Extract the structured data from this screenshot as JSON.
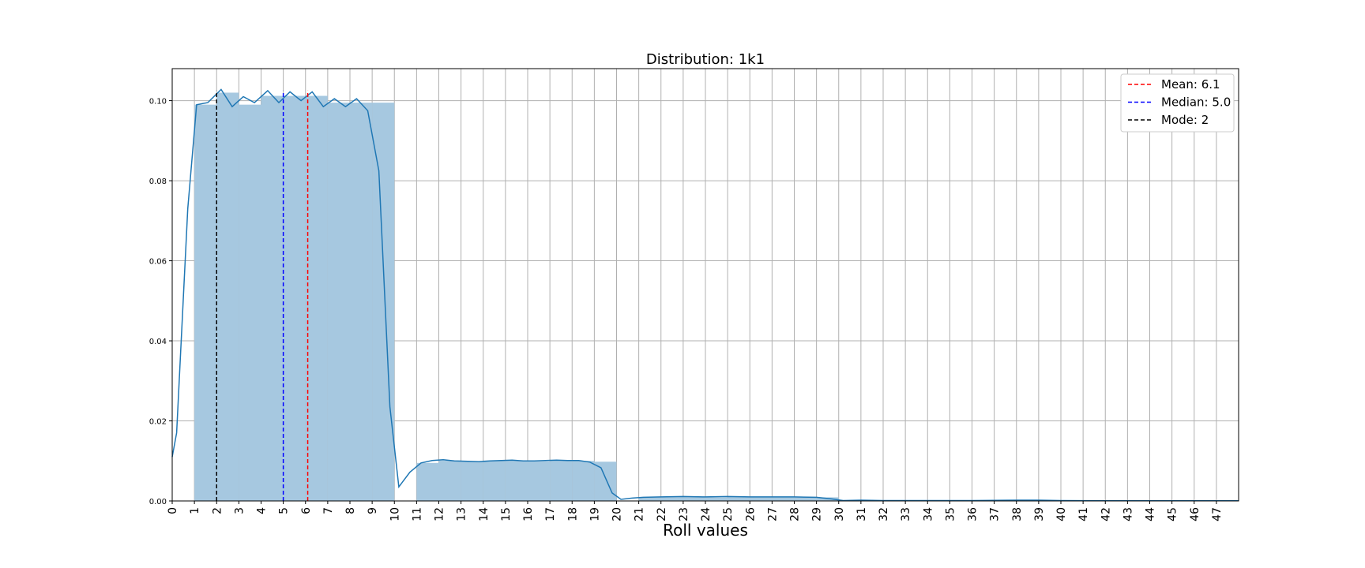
{
  "chart_data": {
    "type": "bar",
    "title": "Distribution: 1k1",
    "xlabel": "Roll values",
    "ylabel": "",
    "xlim": [
      0,
      48
    ],
    "ylim": [
      0,
      0.108
    ],
    "grid": true,
    "legend_position": "top-right",
    "x_ticks": [
      "0",
      "1",
      "2",
      "3",
      "4",
      "5",
      "6",
      "7",
      "8",
      "9",
      "10",
      "11",
      "12",
      "13",
      "14",
      "15",
      "16",
      "17",
      "18",
      "19",
      "20",
      "21",
      "22",
      "23",
      "24",
      "25",
      "26",
      "27",
      "28",
      "29",
      "30",
      "31",
      "32",
      "33",
      "34",
      "35",
      "36",
      "37",
      "38",
      "39",
      "40",
      "41",
      "42",
      "43",
      "44",
      "45",
      "46",
      "47"
    ],
    "y_ticks": [
      "0.00",
      "0.02",
      "0.04",
      "0.06",
      "0.08",
      "0.10"
    ],
    "y_tick_values": [
      0,
      0.02,
      0.04,
      0.06,
      0.08,
      0.1
    ],
    "histogram": {
      "series_color": "#a6c8e0",
      "bins": [
        {
          "x0": 1,
          "x1": 2,
          "value": 0.099
        },
        {
          "x0": 2,
          "x1": 3,
          "value": 0.102
        },
        {
          "x0": 3,
          "x1": 4,
          "value": 0.099
        },
        {
          "x0": 4,
          "x1": 5,
          "value": 0.1012
        },
        {
          "x0": 5,
          "x1": 6,
          "value": 0.1012
        },
        {
          "x0": 6,
          "x1": 7,
          "value": 0.1012
        },
        {
          "x0": 7,
          "x1": 8,
          "value": 0.0995
        },
        {
          "x0": 8,
          "x1": 9,
          "value": 0.0995
        },
        {
          "x0": 9,
          "x1": 10,
          "value": 0.0995
        },
        {
          "x0": 11,
          "x1": 12,
          "value": 0.0095
        },
        {
          "x0": 12,
          "x1": 13,
          "value": 0.0101
        },
        {
          "x0": 13,
          "x1": 14,
          "value": 0.0099
        },
        {
          "x0": 14,
          "x1": 15,
          "value": 0.0101
        },
        {
          "x0": 15,
          "x1": 16,
          "value": 0.0101
        },
        {
          "x0": 16,
          "x1": 17,
          "value": 0.0099
        },
        {
          "x0": 17,
          "x1": 18,
          "value": 0.0101
        },
        {
          "x0": 18,
          "x1": 19,
          "value": 0.01
        },
        {
          "x0": 19,
          "x1": 20,
          "value": 0.0098
        },
        {
          "x0": 21,
          "x1": 22,
          "value": 0.0009
        },
        {
          "x0": 22,
          "x1": 23,
          "value": 0.001
        },
        {
          "x0": 23,
          "x1": 24,
          "value": 0.001
        },
        {
          "x0": 24,
          "x1": 25,
          "value": 0.0009
        },
        {
          "x0": 25,
          "x1": 26,
          "value": 0.001
        },
        {
          "x0": 26,
          "x1": 27,
          "value": 0.0009
        },
        {
          "x0": 27,
          "x1": 28,
          "value": 0.0009
        },
        {
          "x0": 28,
          "x1": 29,
          "value": 0.0009
        },
        {
          "x0": 29,
          "x1": 30,
          "value": 0.0009
        }
      ]
    },
    "kde": {
      "color": "#1f77b4",
      "points": [
        [
          0,
          0.011
        ],
        [
          0.2,
          0.017
        ],
        [
          0.7,
          0.073
        ],
        [
          1.1,
          0.099
        ],
        [
          1.6,
          0.0995
        ],
        [
          2.2,
          0.1028
        ],
        [
          2.7,
          0.0985
        ],
        [
          3.2,
          0.101
        ],
        [
          3.7,
          0.0995
        ],
        [
          4.3,
          0.1025
        ],
        [
          4.8,
          0.0995
        ],
        [
          5.3,
          0.1022
        ],
        [
          5.8,
          0.1
        ],
        [
          6.3,
          0.1022
        ],
        [
          6.8,
          0.0985
        ],
        [
          7.3,
          0.1005
        ],
        [
          7.8,
          0.0985
        ],
        [
          8.3,
          0.1005
        ],
        [
          8.8,
          0.0975
        ],
        [
          9.3,
          0.0825
        ],
        [
          9.8,
          0.0235
        ],
        [
          10.2,
          0.0035
        ],
        [
          10.7,
          0.0072
        ],
        [
          11.2,
          0.0095
        ],
        [
          11.7,
          0.0101
        ],
        [
          12.2,
          0.0103
        ],
        [
          12.7,
          0.01
        ],
        [
          13.3,
          0.0099
        ],
        [
          13.8,
          0.0098
        ],
        [
          14.3,
          0.01
        ],
        [
          14.8,
          0.0101
        ],
        [
          15.3,
          0.0102
        ],
        [
          15.8,
          0.01
        ],
        [
          16.3,
          0.01
        ],
        [
          16.8,
          0.0101
        ],
        [
          17.3,
          0.0102
        ],
        [
          17.8,
          0.0101
        ],
        [
          18.3,
          0.0101
        ],
        [
          18.8,
          0.0097
        ],
        [
          19.3,
          0.0083
        ],
        [
          19.8,
          0.002
        ],
        [
          20.2,
          0.0004
        ],
        [
          20.7,
          0.0007
        ],
        [
          21.2,
          0.0009
        ],
        [
          22,
          0.001
        ],
        [
          23,
          0.0011
        ],
        [
          24,
          0.001
        ],
        [
          25,
          0.0011
        ],
        [
          26,
          0.001
        ],
        [
          27,
          0.001
        ],
        [
          28,
          0.001
        ],
        [
          29,
          0.0009
        ],
        [
          29.7,
          0.0005
        ],
        [
          30.2,
          0.0001
        ],
        [
          31,
          0.0002
        ],
        [
          32,
          0.0001
        ],
        [
          34,
          0.0001
        ],
        [
          36,
          0.0001
        ],
        [
          38,
          0.0002
        ],
        [
          39,
          0.0002
        ],
        [
          40,
          0.0001
        ],
        [
          42,
          5e-05
        ],
        [
          44,
          5e-05
        ],
        [
          46,
          5e-05
        ],
        [
          48,
          5e-05
        ]
      ]
    },
    "reference_lines": [
      {
        "label": "Mean: 6.1",
        "x": 6.1,
        "color": "#ff0000"
      },
      {
        "label": "Median: 5.0",
        "x": 5.0,
        "color": "#0000ff"
      },
      {
        "label": "Mode: 2",
        "x": 2,
        "color": "#000000"
      }
    ],
    "legend": [
      {
        "label": "Mean: 6.1",
        "color": "#ff0000"
      },
      {
        "label": "Median: 5.0",
        "color": "#0000ff"
      },
      {
        "label": "Mode: 2",
        "color": "#000000"
      }
    ]
  }
}
